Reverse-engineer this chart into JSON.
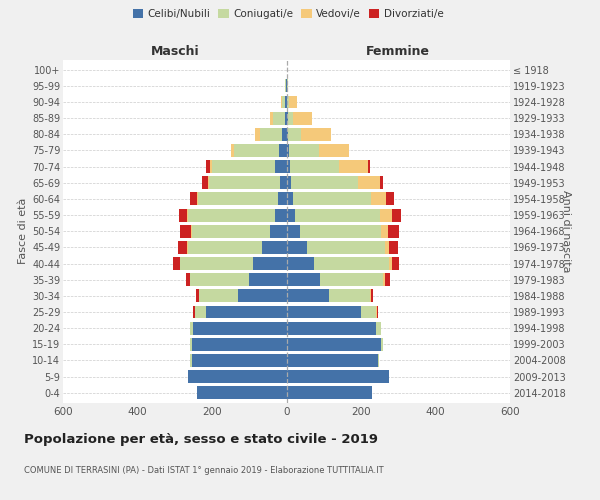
{
  "age_groups": [
    "0-4",
    "5-9",
    "10-14",
    "15-19",
    "20-24",
    "25-29",
    "30-34",
    "35-39",
    "40-44",
    "45-49",
    "50-54",
    "55-59",
    "60-64",
    "65-69",
    "70-74",
    "75-79",
    "80-84",
    "85-89",
    "90-94",
    "95-99",
    "100+"
  ],
  "birth_years": [
    "2014-2018",
    "2009-2013",
    "2004-2008",
    "1999-2003",
    "1994-1998",
    "1989-1993",
    "1984-1988",
    "1979-1983",
    "1974-1978",
    "1969-1973",
    "1964-1968",
    "1959-1963",
    "1954-1958",
    "1949-1953",
    "1944-1948",
    "1939-1943",
    "1934-1938",
    "1929-1933",
    "1924-1928",
    "1919-1923",
    "≤ 1918"
  ],
  "male": {
    "celibi": [
      240,
      265,
      255,
      255,
      250,
      215,
      130,
      100,
      90,
      65,
      45,
      30,
      22,
      18,
      30,
      20,
      12,
      5,
      3,
      1,
      0
    ],
    "coniugati": [
      0,
      0,
      3,
      5,
      10,
      30,
      105,
      160,
      195,
      200,
      210,
      235,
      215,
      190,
      170,
      120,
      60,
      30,
      8,
      2,
      0
    ],
    "vedovi": [
      0,
      0,
      0,
      0,
      0,
      0,
      0,
      0,
      1,
      1,
      2,
      3,
      3,
      3,
      5,
      10,
      12,
      8,
      3,
      0,
      0
    ],
    "divorziati": [
      0,
      0,
      0,
      0,
      0,
      5,
      8,
      10,
      20,
      25,
      30,
      20,
      20,
      15,
      10,
      0,
      0,
      0,
      0,
      0,
      0
    ]
  },
  "female": {
    "nubili": [
      230,
      275,
      245,
      255,
      240,
      200,
      115,
      90,
      75,
      55,
      35,
      22,
      18,
      12,
      10,
      8,
      5,
      3,
      2,
      1,
      0
    ],
    "coniugate": [
      0,
      0,
      2,
      5,
      15,
      40,
      110,
      170,
      200,
      210,
      220,
      230,
      210,
      180,
      130,
      80,
      35,
      15,
      5,
      2,
      0
    ],
    "vedove": [
      0,
      0,
      0,
      0,
      0,
      2,
      3,
      5,
      8,
      10,
      18,
      30,
      40,
      60,
      80,
      80,
      80,
      50,
      20,
      2,
      0
    ],
    "divorziate": [
      0,
      0,
      0,
      0,
      0,
      3,
      5,
      12,
      20,
      25,
      30,
      25,
      20,
      8,
      5,
      0,
      0,
      0,
      0,
      0,
      0
    ]
  },
  "colors": {
    "celibi": "#4472a8",
    "coniugati": "#c5d9a0",
    "vedovi": "#f5c97a",
    "divorziati": "#cc2222"
  },
  "title": "Popolazione per età, sesso e stato civile - 2019",
  "subtitle": "COMUNE DI TERRASINI (PA) - Dati ISTAT 1° gennaio 2019 - Elaborazione TUTTITALIA.IT",
  "ylabel_left": "Fasce di età",
  "ylabel_right": "Anni di nascita",
  "xlabel_left": "Maschi",
  "xlabel_right": "Femmine",
  "xlim": 600,
  "background_color": "#f0f0f0",
  "plot_bg_color": "#ffffff"
}
